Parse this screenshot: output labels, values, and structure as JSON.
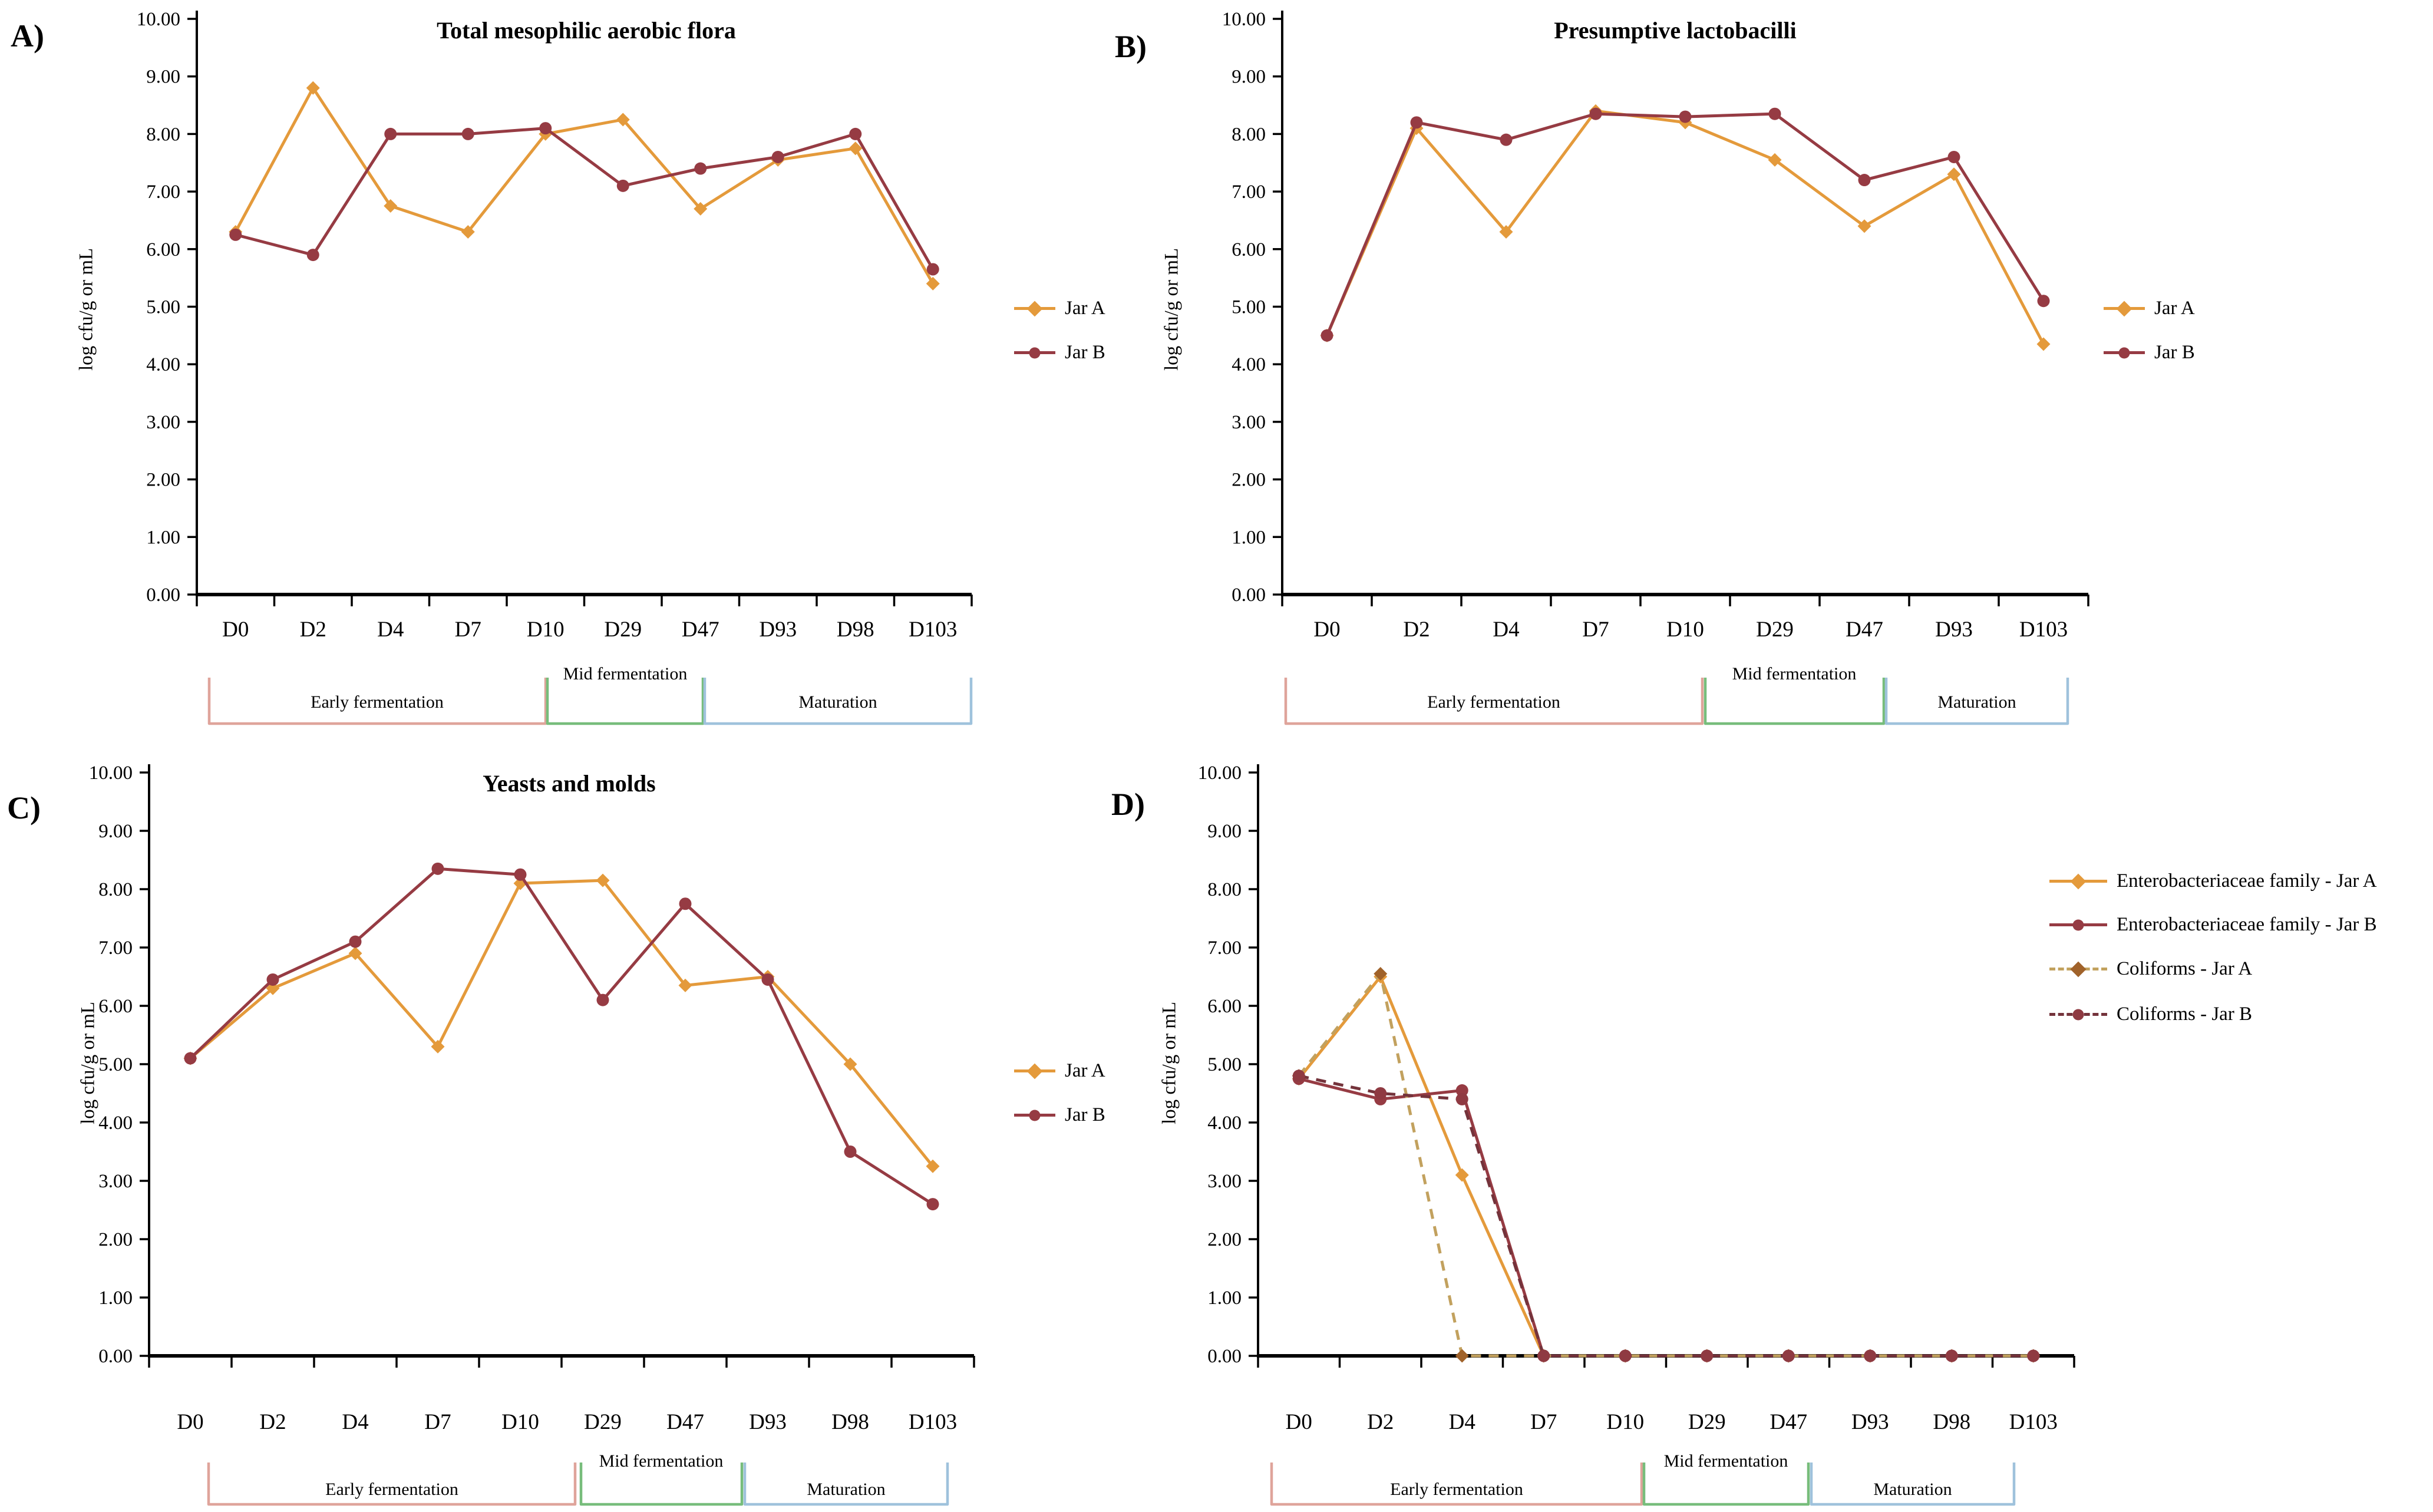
{
  "figure": {
    "background": "#FFFFFF",
    "y_axis_label": "log cfu/g or mL",
    "y_ticks": [
      "0.00",
      "1.00",
      "2.00",
      "3.00",
      "4.00",
      "5.00",
      "6.00",
      "7.00",
      "8.00",
      "9.00",
      "10.00"
    ],
    "phase_colors": {
      "early": "#DFA49B",
      "mid": "#77BD7B",
      "maturation": "#9FC2DC"
    },
    "axis_color": "#000000",
    "series_colors": {
      "jar_a": "#E49A3B",
      "jar_b": "#963B43"
    }
  },
  "chart_data": [
    {
      "type": "line",
      "panel_label": "A)",
      "title": "Total mesophilic aerobic flora",
      "ylabel": "log cfu/g or mL",
      "ylim": [
        0,
        10
      ],
      "grid": false,
      "legend_position": "right",
      "categories": [
        "D0",
        "D2",
        "D4",
        "D7",
        "D10",
        "D29",
        "D47",
        "D93",
        "D98",
        "D103"
      ],
      "series": [
        {
          "name": "Jar A",
          "color": "#E49A3B",
          "marker": "diamond",
          "dash": false,
          "values": [
            6.3,
            8.8,
            6.75,
            6.3,
            8.0,
            8.25,
            6.7,
            7.55,
            7.75,
            5.4
          ]
        },
        {
          "name": "Jar B",
          "color": "#963B43",
          "marker": "circle",
          "dash": false,
          "values": [
            6.25,
            5.9,
            8.0,
            8.0,
            8.1,
            7.1,
            7.4,
            7.6,
            8.0,
            5.65
          ]
        }
      ],
      "phases": [
        {
          "key": "early",
          "label": "Early fermentation"
        },
        {
          "key": "mid",
          "label": "Mid fermentation"
        },
        {
          "key": "maturation",
          "label": "Maturation"
        }
      ]
    },
    {
      "type": "line",
      "panel_label": "B)",
      "title": "Presumptive lactobacilli",
      "ylabel": "log cfu/g or mL",
      "ylim": [
        0,
        10
      ],
      "grid": false,
      "legend_position": "right",
      "categories": [
        "D0",
        "D2",
        "D4",
        "D7",
        "D10",
        "D29",
        "D47",
        "D93",
        "D103"
      ],
      "series": [
        {
          "name": "Jar A",
          "color": "#E49A3B",
          "marker": "diamond",
          "dash": false,
          "values": [
            4.5,
            8.1,
            6.3,
            8.4,
            8.2,
            7.55,
            6.4,
            7.3,
            4.35
          ]
        },
        {
          "name": "Jar B",
          "color": "#963B43",
          "marker": "circle",
          "dash": false,
          "values": [
            4.5,
            8.2,
            7.9,
            8.35,
            8.3,
            8.35,
            7.2,
            7.6,
            5.1
          ]
        }
      ],
      "phases": [
        {
          "key": "early",
          "label": "Early fermentation"
        },
        {
          "key": "mid",
          "label": "Mid fermentation"
        },
        {
          "key": "maturation",
          "label": "Maturation"
        }
      ]
    },
    {
      "type": "line",
      "panel_label": "C)",
      "title": "Yeasts and molds",
      "ylabel": "log cfu/g or mL",
      "ylim": [
        0,
        10
      ],
      "grid": false,
      "legend_position": "right",
      "categories": [
        "D0",
        "D2",
        "D4",
        "D7",
        "D10",
        "D29",
        "D47",
        "D93",
        "D98",
        "D103"
      ],
      "series": [
        {
          "name": "Jar A",
          "color": "#E49A3B",
          "marker": "diamond",
          "dash": false,
          "values": [
            5.1,
            6.3,
            6.9,
            5.3,
            8.1,
            8.15,
            6.35,
            6.5,
            5.0,
            3.25
          ]
        },
        {
          "name": "Jar B",
          "color": "#963B43",
          "marker": "circle",
          "dash": false,
          "values": [
            5.1,
            6.45,
            7.1,
            8.35,
            8.25,
            6.1,
            7.75,
            6.45,
            3.5,
            2.6
          ]
        }
      ],
      "phases": [
        {
          "key": "early",
          "label": "Early fermentation"
        },
        {
          "key": "mid",
          "label": "Mid fermentation"
        },
        {
          "key": "maturation",
          "label": "Maturation"
        }
      ]
    },
    {
      "type": "line",
      "panel_label": "D)",
      "title": "",
      "ylabel": "log cfu/g or mL",
      "ylim": [
        0,
        10
      ],
      "grid": false,
      "legend_position": "right",
      "categories": [
        "D0",
        "D2",
        "D4",
        "D7",
        "D10",
        "D29",
        "D47",
        "D93",
        "D98",
        "D103"
      ],
      "series": [
        {
          "name": "Enterobacteriaceae family - Jar A",
          "color": "#E49A3B",
          "marker": "diamond",
          "dash": false,
          "values": [
            4.75,
            6.5,
            3.1,
            0,
            0,
            0,
            0,
            0,
            0,
            0
          ]
        },
        {
          "name": "Enterobacteriaceae family - Jar B",
          "color": "#963B43",
          "marker": "circle",
          "dash": false,
          "values": [
            4.75,
            4.4,
            4.55,
            0,
            0,
            0,
            0,
            0,
            0,
            0
          ]
        },
        {
          "name": "Coliforms - Jar A",
          "color": "#C2A15E",
          "marker_color": "#A0622A",
          "marker": "diamond",
          "dash": true,
          "values": [
            4.8,
            6.55,
            0,
            0,
            0,
            0,
            0,
            0,
            0,
            0
          ]
        },
        {
          "name": "Coliforms - Jar B",
          "color": "#74333B",
          "marker_color": "#8F3A42",
          "marker": "circle",
          "dash": true,
          "values": [
            4.8,
            4.5,
            4.4,
            0,
            0,
            0,
            0,
            0,
            0,
            0
          ]
        }
      ],
      "phases": [
        {
          "key": "early",
          "label": "Early fermentation"
        },
        {
          "key": "mid",
          "label": "Mid fermentation"
        },
        {
          "key": "maturation",
          "label": "Maturation"
        }
      ]
    }
  ]
}
